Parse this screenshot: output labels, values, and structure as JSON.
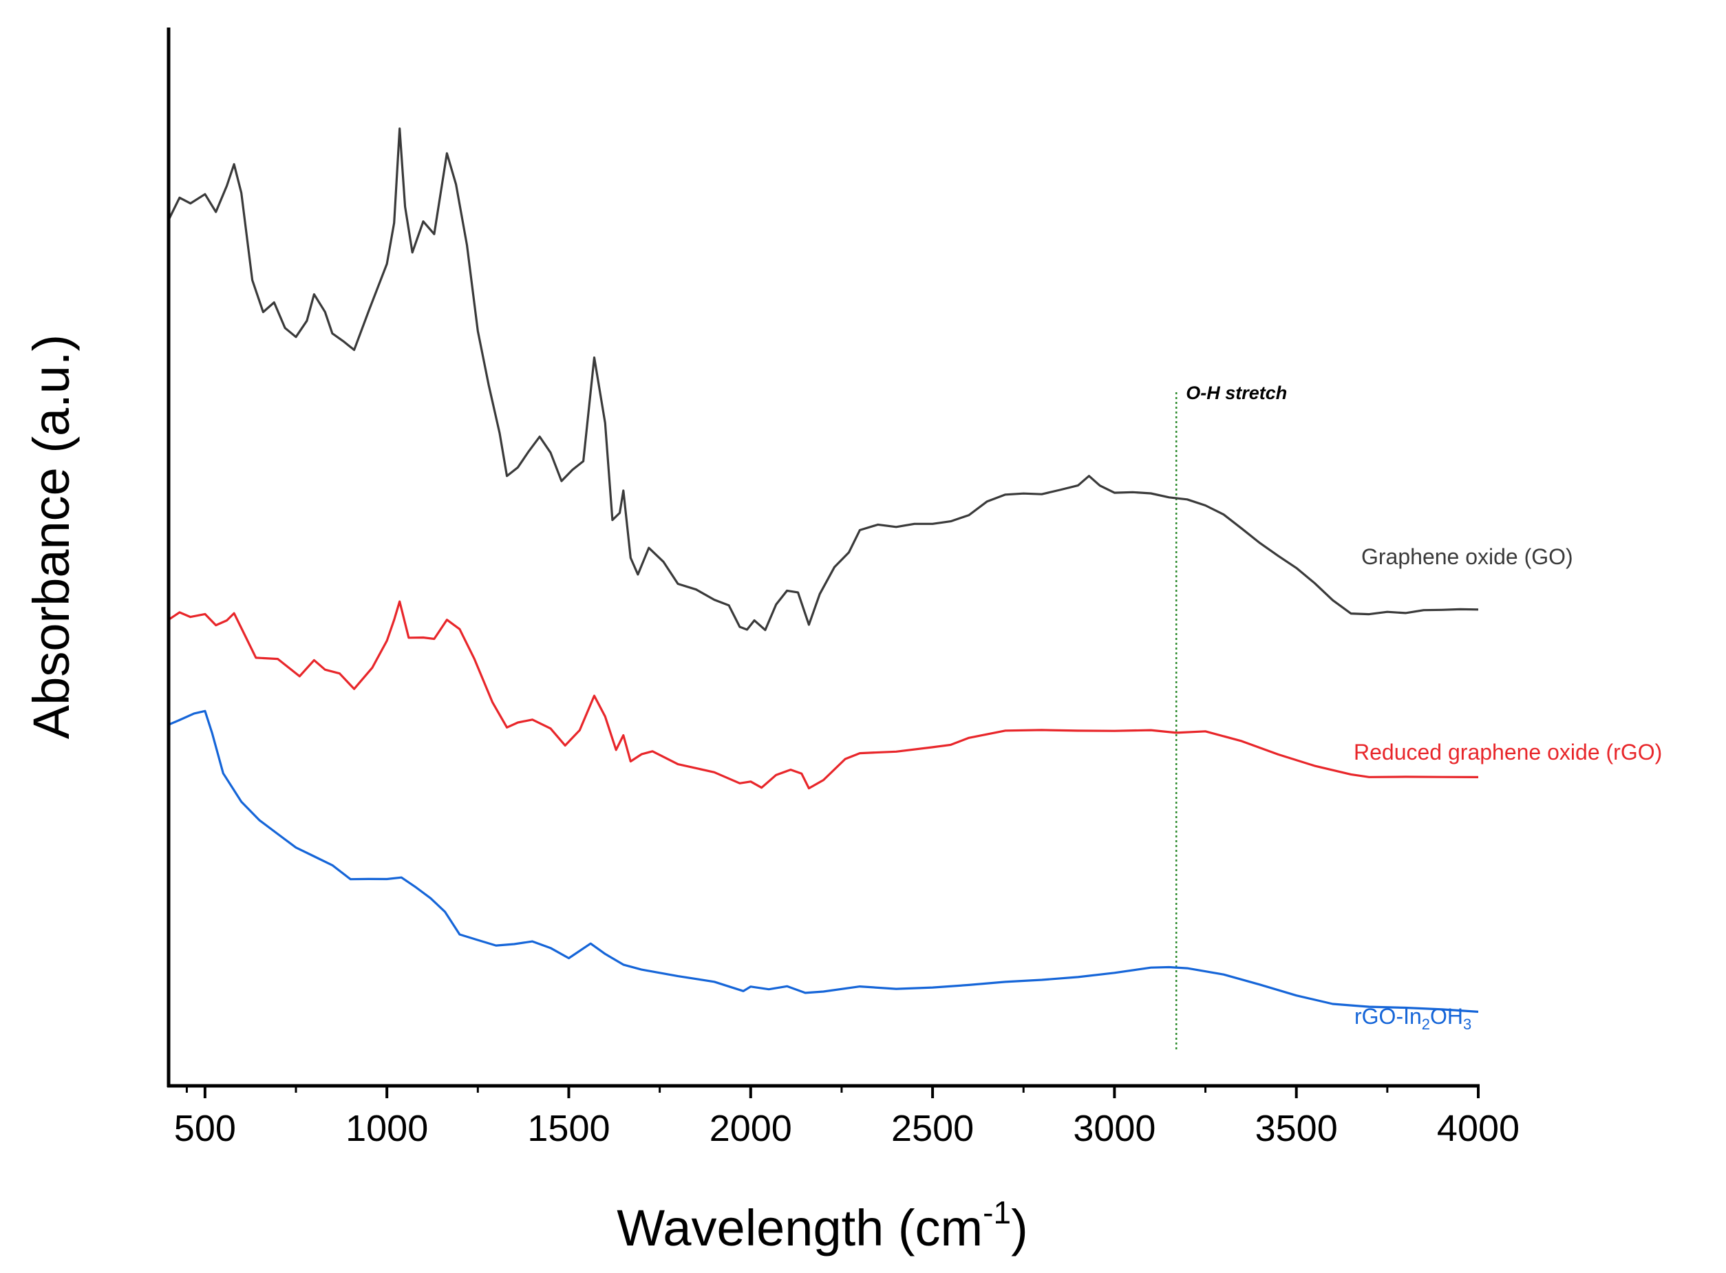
{
  "chart_data": {
    "type": "line",
    "title": "",
    "xlabel_main": "Wavelength (cm",
    "xlabel_sup": "-1",
    "xlabel_close": ")",
    "ylabel": "Absorbance (a.u.)",
    "xlim": [
      400,
      4000
    ],
    "ylim": [
      0,
      1
    ],
    "x_ticks": [
      "500",
      "1000",
      "1500",
      "2000",
      "2500",
      "3000",
      "3500",
      "4000"
    ],
    "annotation": {
      "label": "O-H stretch",
      "x": 3170,
      "color": "#2e8b2e"
    },
    "series": [
      {
        "name": "Graphene oxide (GO)",
        "label_parts": [
          "Graphene oxide (GO)"
        ],
        "color": "#3a3a3a",
        "points": [
          [
            400,
            0.865
          ],
          [
            430,
            0.885
          ],
          [
            460,
            0.88
          ],
          [
            500,
            0.89
          ],
          [
            530,
            0.87
          ],
          [
            560,
            0.9
          ],
          [
            580,
            0.92
          ],
          [
            600,
            0.89
          ],
          [
            630,
            0.8
          ],
          [
            660,
            0.77
          ],
          [
            690,
            0.78
          ],
          [
            720,
            0.75
          ],
          [
            750,
            0.74
          ],
          [
            780,
            0.76
          ],
          [
            800,
            0.785
          ],
          [
            830,
            0.77
          ],
          [
            850,
            0.745
          ],
          [
            880,
            0.74
          ],
          [
            910,
            0.73
          ],
          [
            950,
            0.77
          ],
          [
            1000,
            0.82
          ],
          [
            1020,
            0.86
          ],
          [
            1035,
            0.96
          ],
          [
            1050,
            0.88
          ],
          [
            1070,
            0.83
          ],
          [
            1100,
            0.865
          ],
          [
            1130,
            0.85
          ],
          [
            1165,
            0.935
          ],
          [
            1190,
            0.9
          ],
          [
            1220,
            0.84
          ],
          [
            1250,
            0.75
          ],
          [
            1280,
            0.69
          ],
          [
            1310,
            0.64
          ],
          [
            1330,
            0.595
          ],
          [
            1360,
            0.605
          ],
          [
            1390,
            0.625
          ],
          [
            1420,
            0.64
          ],
          [
            1450,
            0.62
          ],
          [
            1480,
            0.59
          ],
          [
            1510,
            0.605
          ],
          [
            1540,
            0.615
          ],
          [
            1570,
            0.72
          ],
          [
            1600,
            0.65
          ],
          [
            1620,
            0.55
          ],
          [
            1640,
            0.56
          ],
          [
            1650,
            0.58
          ],
          [
            1670,
            0.51
          ],
          [
            1690,
            0.495
          ],
          [
            1720,
            0.52
          ],
          [
            1760,
            0.51
          ],
          [
            1800,
            0.485
          ],
          [
            1850,
            0.48
          ],
          [
            1900,
            0.47
          ],
          [
            1940,
            0.46
          ],
          [
            1970,
            0.44
          ],
          [
            1990,
            0.435
          ],
          [
            2010,
            0.445
          ],
          [
            2040,
            0.435
          ],
          [
            2070,
            0.465
          ],
          [
            2100,
            0.48
          ],
          [
            2130,
            0.475
          ],
          [
            2160,
            0.44
          ],
          [
            2190,
            0.475
          ],
          [
            2230,
            0.5
          ],
          [
            2270,
            0.52
          ],
          [
            2300,
            0.54
          ],
          [
            2350,
            0.545
          ],
          [
            2400,
            0.542
          ],
          [
            2450,
            0.545
          ],
          [
            2500,
            0.545
          ],
          [
            2550,
            0.548
          ],
          [
            2600,
            0.555
          ],
          [
            2650,
            0.57
          ],
          [
            2700,
            0.578
          ],
          [
            2750,
            0.58
          ],
          [
            2800,
            0.58
          ],
          [
            2850,
            0.585
          ],
          [
            2900,
            0.59
          ],
          [
            2930,
            0.598
          ],
          [
            2960,
            0.585
          ],
          [
            3000,
            0.582
          ],
          [
            3050,
            0.582
          ],
          [
            3100,
            0.58
          ],
          [
            3150,
            0.575
          ],
          [
            3200,
            0.572
          ],
          [
            3250,
            0.565
          ],
          [
            3300,
            0.555
          ],
          [
            3350,
            0.54
          ],
          [
            3400,
            0.525
          ],
          [
            3450,
            0.512
          ],
          [
            3500,
            0.5
          ],
          [
            3550,
            0.485
          ],
          [
            3600,
            0.468
          ],
          [
            3650,
            0.455
          ],
          [
            3700,
            0.455
          ],
          [
            3750,
            0.458
          ],
          [
            3800,
            0.457
          ],
          [
            3850,
            0.46
          ],
          [
            3900,
            0.46
          ],
          [
            3950,
            0.46
          ],
          [
            4000,
            0.459
          ]
        ]
      },
      {
        "name": "Reduced graphene oxide (rGO)",
        "label_parts": [
          "Reduced graphene oxide (rGO)"
        ],
        "color": "#e8262a",
        "points": [
          [
            400,
            0.45
          ],
          [
            430,
            0.455
          ],
          [
            460,
            0.448
          ],
          [
            500,
            0.455
          ],
          [
            530,
            0.44
          ],
          [
            560,
            0.445
          ],
          [
            580,
            0.452
          ],
          [
            610,
            0.43
          ],
          [
            640,
            0.41
          ],
          [
            700,
            0.405
          ],
          [
            760,
            0.39
          ],
          [
            800,
            0.403
          ],
          [
            830,
            0.395
          ],
          [
            870,
            0.39
          ],
          [
            910,
            0.378
          ],
          [
            960,
            0.4
          ],
          [
            1000,
            0.425
          ],
          [
            1020,
            0.445
          ],
          [
            1035,
            0.465
          ],
          [
            1060,
            0.43
          ],
          [
            1100,
            0.43
          ],
          [
            1130,
            0.43
          ],
          [
            1165,
            0.45
          ],
          [
            1200,
            0.44
          ],
          [
            1240,
            0.405
          ],
          [
            1290,
            0.36
          ],
          [
            1330,
            0.335
          ],
          [
            1360,
            0.338
          ],
          [
            1400,
            0.345
          ],
          [
            1450,
            0.335
          ],
          [
            1490,
            0.318
          ],
          [
            1530,
            0.33
          ],
          [
            1570,
            0.37
          ],
          [
            1600,
            0.345
          ],
          [
            1630,
            0.31
          ],
          [
            1650,
            0.325
          ],
          [
            1670,
            0.3
          ],
          [
            1700,
            0.305
          ],
          [
            1730,
            0.31
          ],
          [
            1800,
            0.295
          ],
          [
            1900,
            0.288
          ],
          [
            1970,
            0.275
          ],
          [
            2000,
            0.28
          ],
          [
            2030,
            0.275
          ],
          [
            2070,
            0.285
          ],
          [
            2110,
            0.29
          ],
          [
            2140,
            0.285
          ],
          [
            2160,
            0.27
          ],
          [
            2200,
            0.283
          ],
          [
            2260,
            0.3
          ],
          [
            2300,
            0.31
          ],
          [
            2400,
            0.31
          ],
          [
            2500,
            0.313
          ],
          [
            2550,
            0.315
          ],
          [
            2600,
            0.322
          ],
          [
            2700,
            0.33
          ],
          [
            2800,
            0.332
          ],
          [
            2900,
            0.333
          ],
          [
            3000,
            0.334
          ],
          [
            3100,
            0.335
          ],
          [
            3170,
            0.332
          ],
          [
            3250,
            0.332
          ],
          [
            3350,
            0.32
          ],
          [
            3450,
            0.305
          ],
          [
            3550,
            0.293
          ],
          [
            3650,
            0.285
          ],
          [
            3700,
            0.283
          ],
          [
            3800,
            0.285
          ],
          [
            3900,
            0.286
          ],
          [
            4000,
            0.286
          ]
        ]
      },
      {
        "name": "rGO-In2OH3",
        "label_parts": [
          "rGO-In",
          "2",
          "OH",
          "3"
        ],
        "color": "#1565d8",
        "points": [
          [
            400,
            0.34
          ],
          [
            430,
            0.345
          ],
          [
            470,
            0.35
          ],
          [
            500,
            0.355
          ],
          [
            520,
            0.33
          ],
          [
            550,
            0.29
          ],
          [
            600,
            0.26
          ],
          [
            650,
            0.24
          ],
          [
            700,
            0.225
          ],
          [
            750,
            0.21
          ],
          [
            800,
            0.2
          ],
          [
            850,
            0.19
          ],
          [
            900,
            0.175
          ],
          [
            950,
            0.175
          ],
          [
            1000,
            0.175
          ],
          [
            1040,
            0.18
          ],
          [
            1080,
            0.17
          ],
          [
            1120,
            0.155
          ],
          [
            1160,
            0.145
          ],
          [
            1200,
            0.12
          ],
          [
            1250,
            0.115
          ],
          [
            1300,
            0.11
          ],
          [
            1350,
            0.112
          ],
          [
            1400,
            0.115
          ],
          [
            1450,
            0.108
          ],
          [
            1500,
            0.097
          ],
          [
            1560,
            0.108
          ],
          [
            1600,
            0.1
          ],
          [
            1650,
            0.088
          ],
          [
            1700,
            0.082
          ],
          [
            1800,
            0.074
          ],
          [
            1900,
            0.068
          ],
          [
            1980,
            0.062
          ],
          [
            2000,
            0.064
          ],
          [
            2050,
            0.062
          ],
          [
            2100,
            0.066
          ],
          [
            2150,
            0.06
          ],
          [
            2200,
            0.062
          ],
          [
            2300,
            0.068
          ],
          [
            2400,
            0.065
          ],
          [
            2500,
            0.065
          ],
          [
            2600,
            0.066
          ],
          [
            2700,
            0.068
          ],
          [
            2800,
            0.07
          ],
          [
            2900,
            0.074
          ],
          [
            3000,
            0.08
          ],
          [
            3100,
            0.087
          ],
          [
            3150,
            0.088
          ],
          [
            3200,
            0.087
          ],
          [
            3300,
            0.08
          ],
          [
            3400,
            0.068
          ],
          [
            3500,
            0.055
          ],
          [
            3600,
            0.045
          ],
          [
            3700,
            0.042
          ],
          [
            3800,
            0.042
          ],
          [
            3900,
            0.042
          ],
          [
            4000,
            0.041
          ]
        ]
      }
    ]
  }
}
